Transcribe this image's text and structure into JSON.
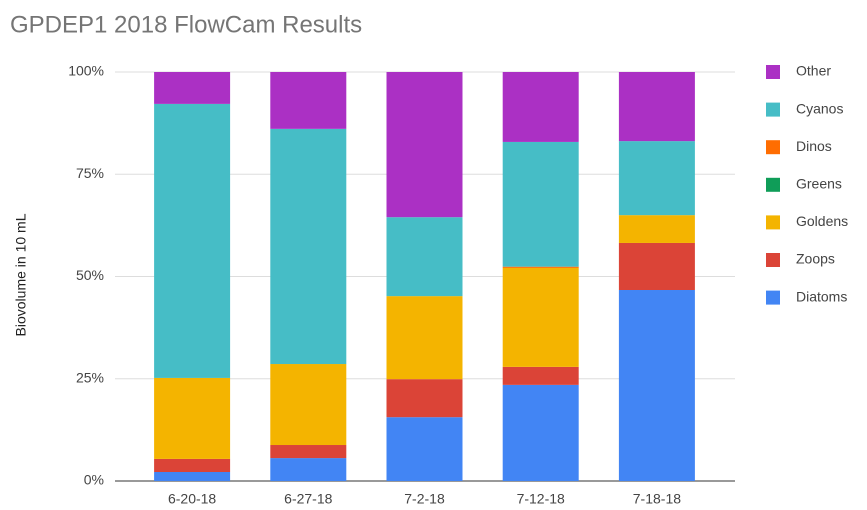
{
  "chart_data": {
    "type": "stacked_bar",
    "title": "GPDEP1 2018 FlowCam Results",
    "ylabel": "Biovolume in 10 mL",
    "categories": [
      "6-20-18",
      "6-27-18",
      "7-2-18",
      "7-12-18",
      "7-18-18"
    ],
    "series": [
      {
        "name": "Diatoms",
        "color": "#4285f4",
        "values": [
          2.2,
          5.6,
          15.6,
          23.5,
          46.7
        ]
      },
      {
        "name": "Zoops",
        "color": "#db4437",
        "values": [
          3.2,
          3.2,
          9.3,
          4.4,
          11.5
        ]
      },
      {
        "name": "Goldens",
        "color": "#f4b400",
        "values": [
          19.8,
          19.8,
          20.3,
          24.2,
          6.8
        ]
      },
      {
        "name": "Greens",
        "color": "#0f9d58",
        "values": [
          0,
          0,
          0,
          0,
          0
        ]
      },
      {
        "name": "Dinos",
        "color": "#ff6d01",
        "values": [
          0,
          0,
          0,
          0.3,
          0
        ]
      },
      {
        "name": "Cyanos",
        "color": "#46bdc6",
        "values": [
          67,
          57.5,
          19.3,
          30.5,
          18.1
        ]
      },
      {
        "name": "Other",
        "color": "#ab30c4",
        "values": [
          7.8,
          13.9,
          35.5,
          17.1,
          16.9
        ]
      }
    ],
    "ylim": [
      0,
      100
    ],
    "yticks": [
      {
        "value": 0,
        "label": "0%"
      },
      {
        "value": 25,
        "label": "25%"
      },
      {
        "value": 50,
        "label": "50%"
      },
      {
        "value": 75,
        "label": "75%"
      },
      {
        "value": 100,
        "label": "100%"
      }
    ],
    "grid": true,
    "legend": "right"
  }
}
